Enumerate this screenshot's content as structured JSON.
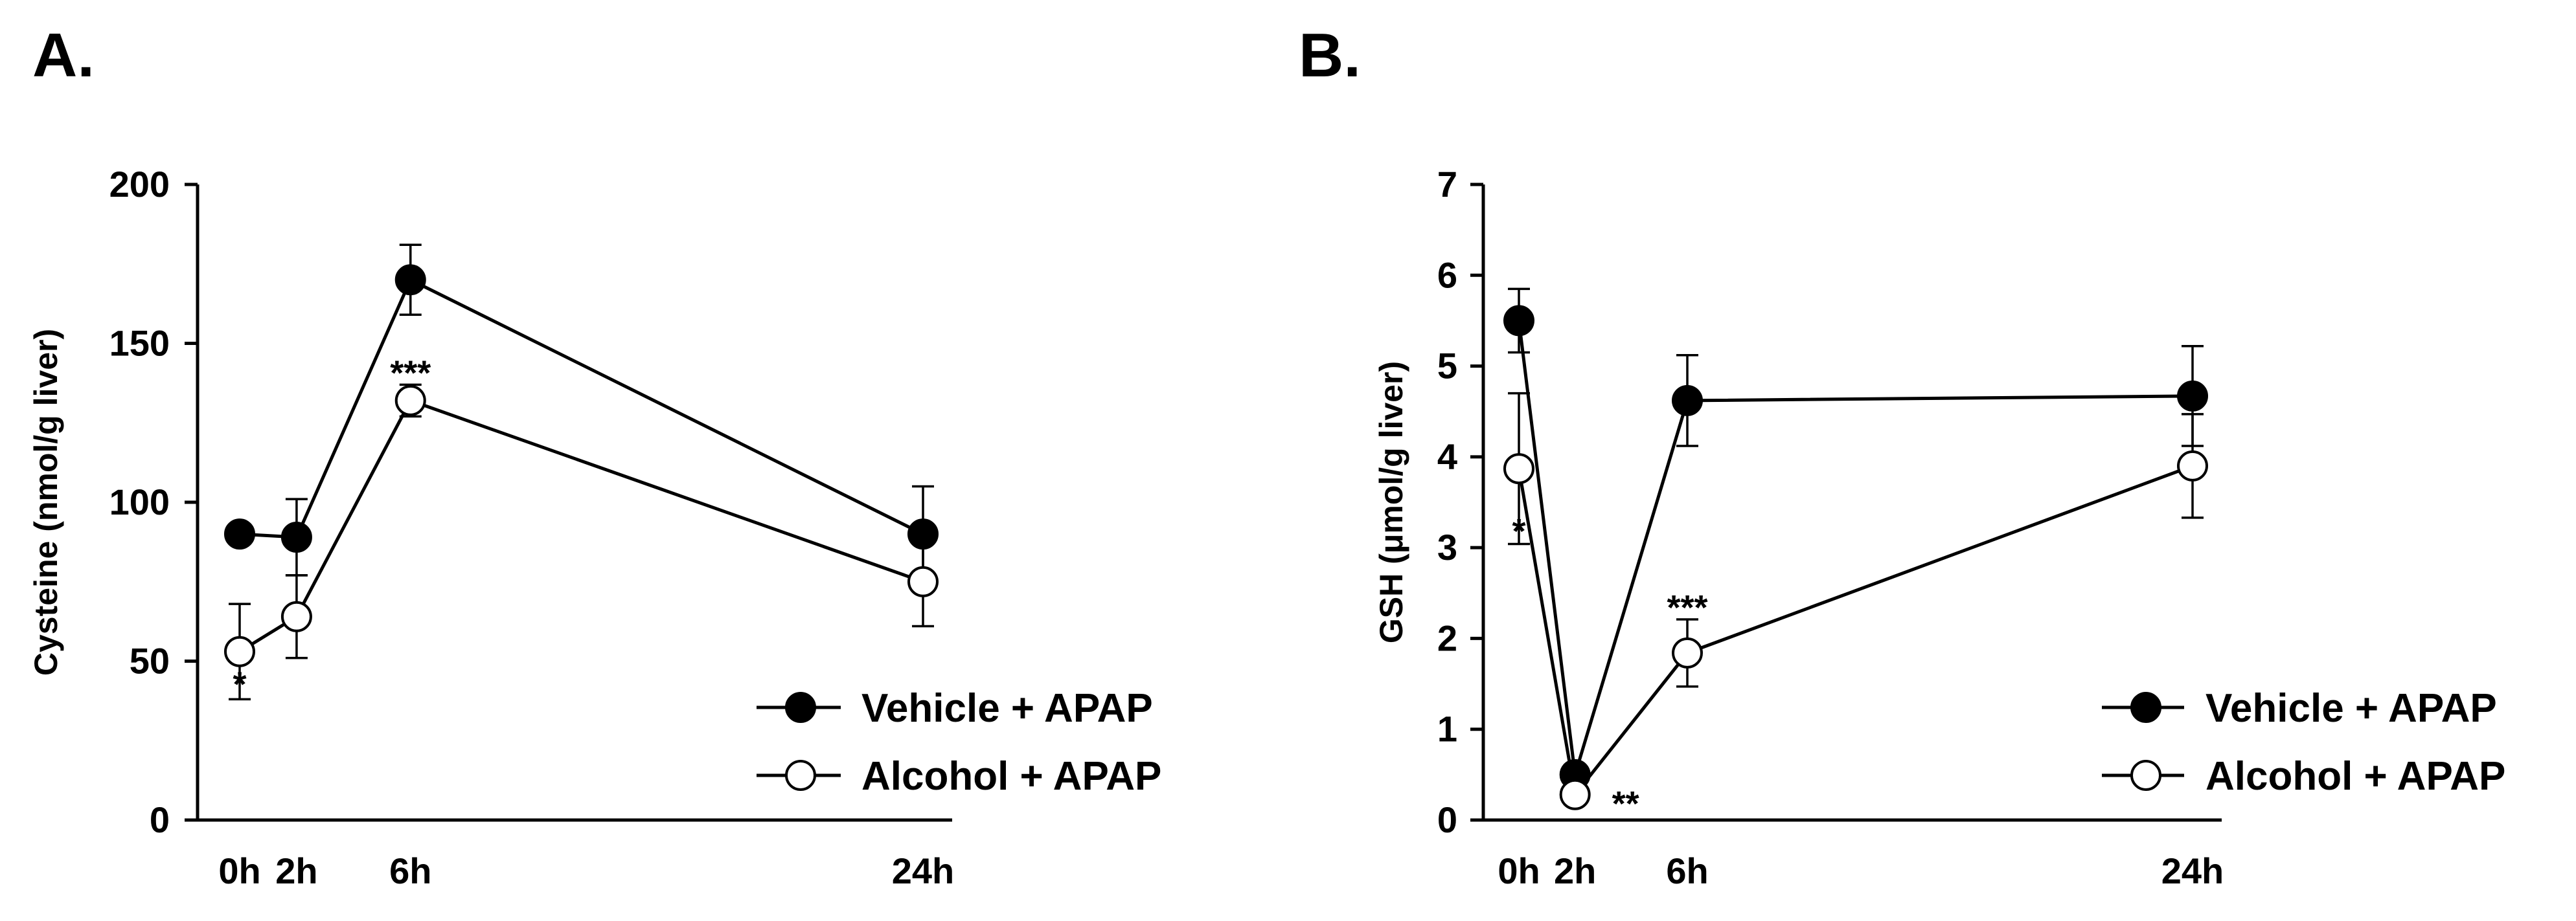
{
  "chart_data": [
    {
      "panel": "A.",
      "type": "line",
      "title": "",
      "xlabel": "",
      "ylabel": "Cysteine (nmol/g liver)",
      "categories": [
        "0h",
        "2h",
        "6h",
        "24h"
      ],
      "x": [
        0,
        2,
        6,
        24
      ],
      "ylim": [
        0,
        200
      ],
      "yticks": [
        0,
        50,
        100,
        150,
        200
      ],
      "grid": false,
      "legend_position": "bottom-right",
      "series": [
        {
          "name": "Vehicle + APAP",
          "marker": "filled",
          "values": [
            90,
            89,
            170,
            90
          ],
          "errors": [
            0,
            12,
            11,
            15
          ]
        },
        {
          "name": "Alcohol + APAP",
          "marker": "open",
          "values": [
            53,
            64,
            132,
            75
          ],
          "errors": [
            15,
            13,
            5,
            14
          ]
        }
      ],
      "annotations": [
        {
          "x": 0,
          "y": 39,
          "text": "*"
        },
        {
          "x": 6,
          "y": 137,
          "text": "***"
        }
      ]
    },
    {
      "panel": "B.",
      "type": "line",
      "title": "",
      "xlabel": "",
      "ylabel": "GSH (μmol/g liver)",
      "categories": [
        "0h",
        "2h",
        "6h",
        "24h"
      ],
      "x": [
        0,
        2,
        6,
        24
      ],
      "ylim": [
        0,
        7
      ],
      "yticks": [
        0,
        1,
        2,
        3,
        4,
        5,
        6,
        7
      ],
      "grid": false,
      "legend_position": "bottom-right",
      "series": [
        {
          "name": "Vehicle + APAP",
          "marker": "filled",
          "values": [
            5.5,
            0.5,
            4.62,
            4.67
          ],
          "errors": [
            0.35,
            0,
            0.5,
            0.55
          ]
        },
        {
          "name": "Alcohol + APAP",
          "marker": "open",
          "values": [
            3.87,
            0.28,
            1.84,
            3.9
          ],
          "errors": [
            0.83,
            0,
            0.37,
            0.57
          ]
        }
      ],
      "annotations": [
        {
          "x": 0,
          "y": 3.05,
          "text": "*"
        },
        {
          "x": 3.8,
          "y": 0.05,
          "text": "**"
        },
        {
          "x": 6,
          "y": 2.21,
          "text": "***"
        }
      ]
    }
  ]
}
